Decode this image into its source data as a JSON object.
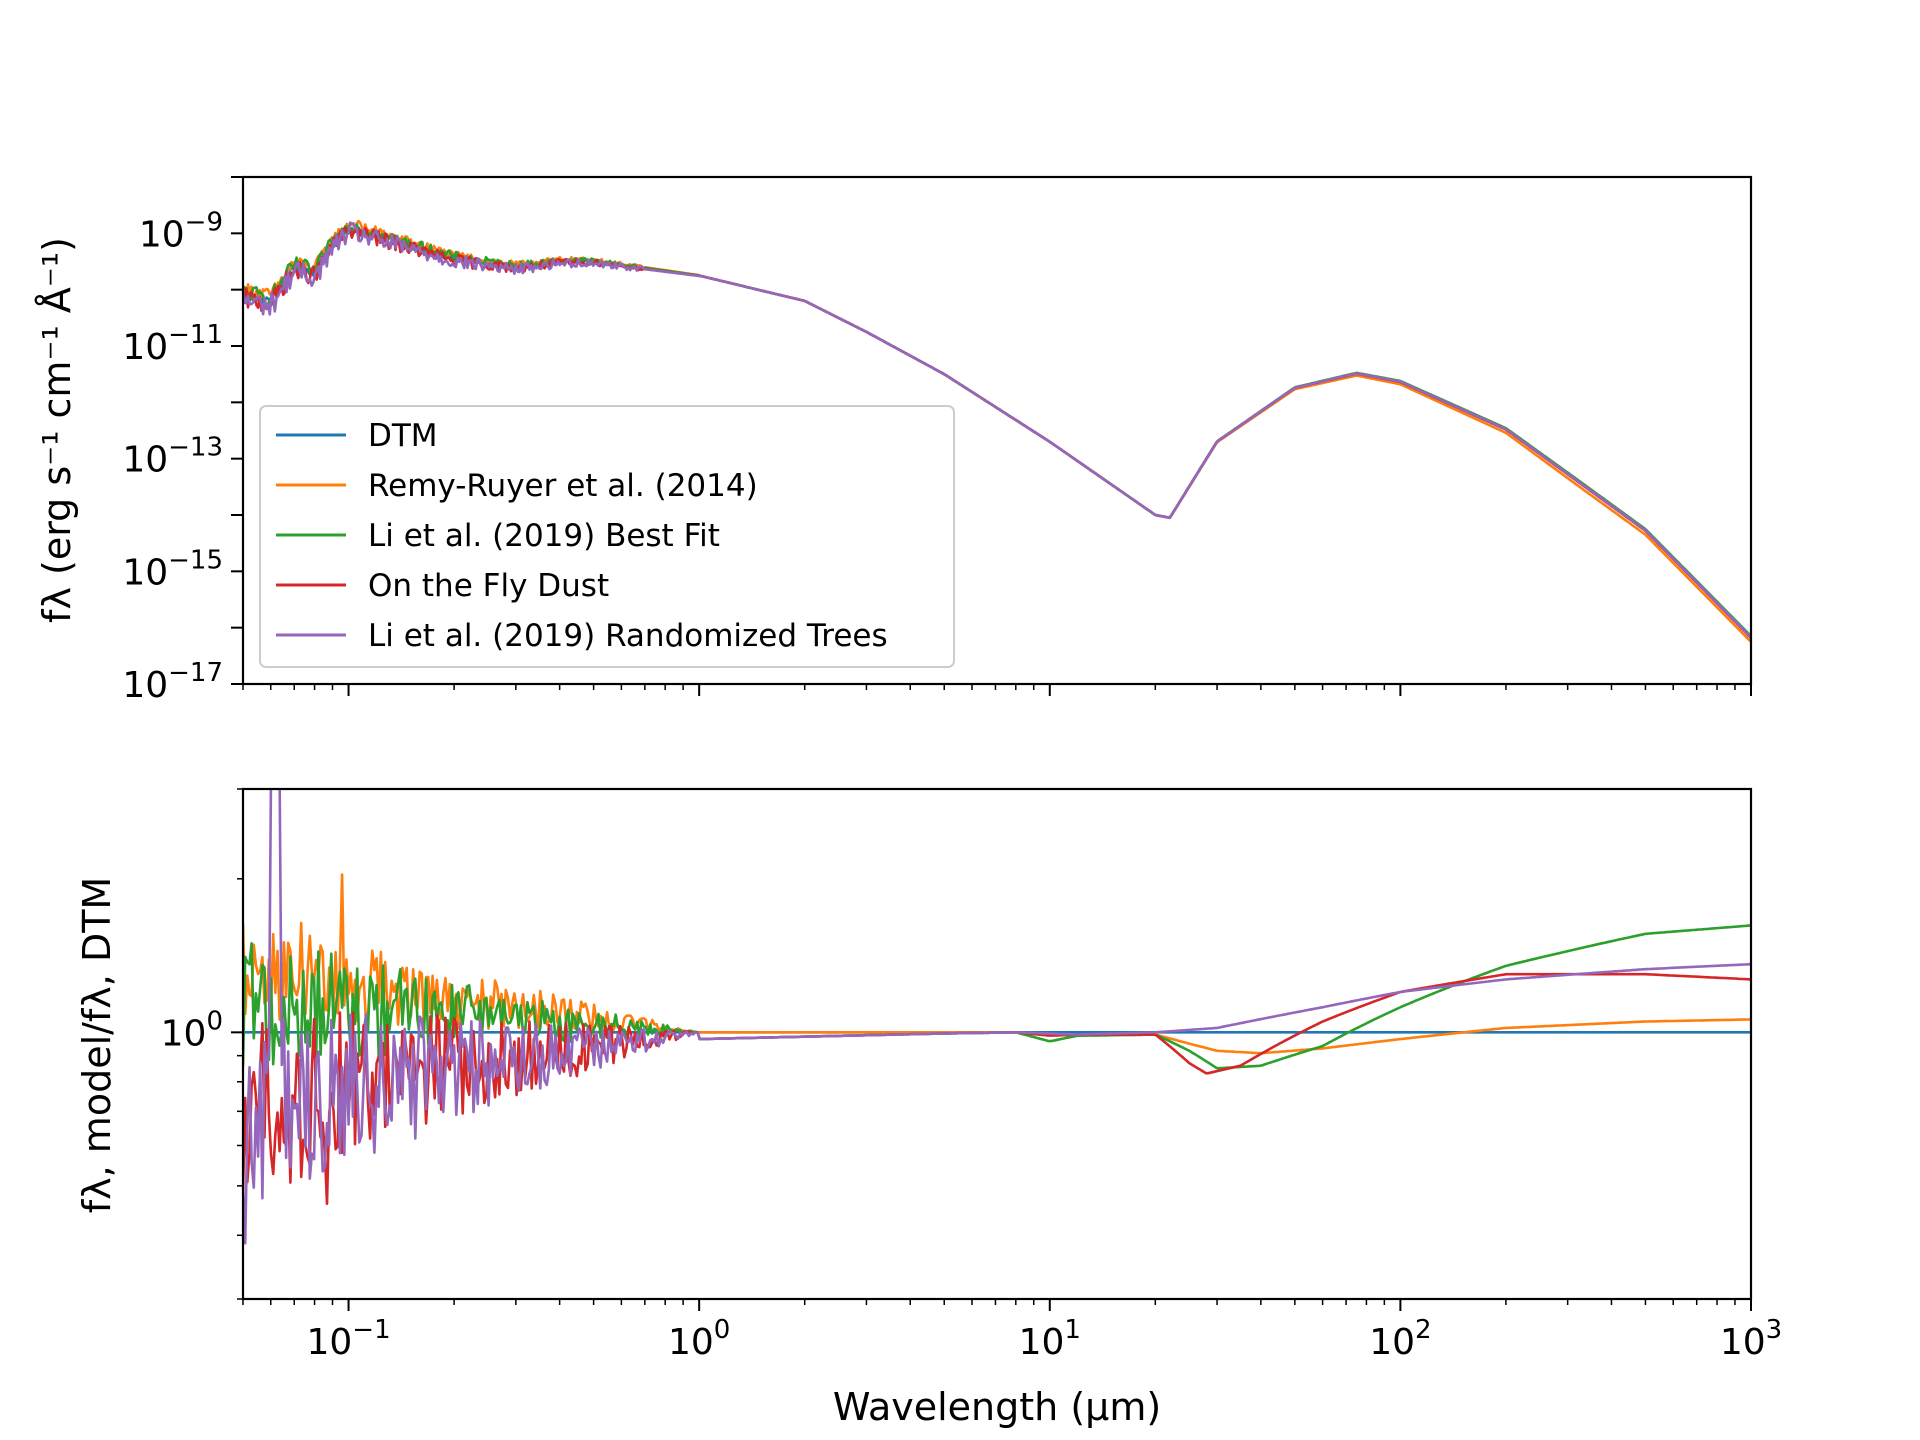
{
  "figure": {
    "xlabel": "Wavelength (μm)",
    "xscale": "log",
    "xlim": [
      0.05,
      1000
    ],
    "x_ticks": [
      {
        "value": 0.1,
        "base": "10",
        "exp": "−1"
      },
      {
        "value": 1,
        "base": "10",
        "exp": "0"
      },
      {
        "value": 10,
        "base": "10",
        "exp": "1"
      },
      {
        "value": 100,
        "base": "10",
        "exp": "2"
      },
      {
        "value": 1000,
        "base": "10",
        "exp": "3"
      }
    ]
  },
  "chart_data": [
    {
      "type": "line",
      "panel": "top",
      "ylabel": "fλ (erg s⁻¹ cm⁻¹ Å⁻¹)",
      "xscale": "log",
      "yscale": "log",
      "xlim": [
        0.05,
        1000
      ],
      "ylim_log10": [
        -17,
        -8
      ],
      "y_ticks": [
        {
          "log10": -9,
          "base": "10",
          "exp": "−9"
        },
        {
          "log10": -11,
          "base": "10",
          "exp": "−11"
        },
        {
          "log10": -13,
          "base": "10",
          "exp": "−13"
        },
        {
          "log10": -15,
          "base": "10",
          "exp": "−15"
        },
        {
          "log10": -17,
          "base": "10",
          "exp": "−17"
        }
      ],
      "legend_position": "lower-left",
      "series": [
        {
          "name": "DTM",
          "color": "#1f77b4",
          "offset": 0,
          "noise": 0.05
        },
        {
          "name": "Remy-Ruyer et al. (2014)",
          "color": "#ff7f0e",
          "offset": 0.1,
          "noise": 0.07
        },
        {
          "name": "Li et al. (2019) Best Fit",
          "color": "#2ca02c",
          "offset": 0.05,
          "noise": 0.09
        },
        {
          "name": "On the Fly Dust",
          "color": "#d62728",
          "offset": -0.05,
          "noise": 0.11
        },
        {
          "name": "Li et al. (2019) Randomized Trees",
          "color": "#9467bd",
          "offset": -0.08,
          "noise": 0.13
        }
      ],
      "key_points": [
        {
          "x": 0.05,
          "log10_y": -10.1
        },
        {
          "x": 0.06,
          "log10_y": -10.2
        },
        {
          "x": 0.07,
          "log10_y": -9.6
        },
        {
          "x": 0.08,
          "log10_y": -9.7
        },
        {
          "x": 0.09,
          "log10_y": -9.2
        },
        {
          "x": 0.1,
          "log10_y": -8.9
        },
        {
          "x": 0.2,
          "log10_y": -9.45
        },
        {
          "x": 0.3,
          "log10_y": -9.6
        },
        {
          "x": 0.4,
          "log10_y": -9.5
        },
        {
          "x": 0.5,
          "log10_y": -9.5
        },
        {
          "x": 1,
          "log10_y": -9.75
        },
        {
          "x": 2,
          "log10_y": -10.2
        },
        {
          "x": 3,
          "log10_y": -10.75
        },
        {
          "x": 5,
          "log10_y": -11.5
        },
        {
          "x": 10,
          "log10_y": -12.7
        },
        {
          "x": 20,
          "log10_y": -14.0
        },
        {
          "x": 22,
          "log10_y": -14.05
        },
        {
          "x": 30,
          "log10_y": -12.7
        },
        {
          "x": 50,
          "log10_y": -11.75
        },
        {
          "x": 75,
          "log10_y": -11.5
        },
        {
          "x": 100,
          "log10_y": -11.65
        },
        {
          "x": 200,
          "log10_y": -12.5
        },
        {
          "x": 500,
          "log10_y": -14.3
        },
        {
          "x": 1000,
          "log10_y": -16.2
        }
      ]
    },
    {
      "type": "line",
      "panel": "bottom",
      "ylabel": "fλ, model/fλ, DTM",
      "xscale": "log",
      "yscale": "log",
      "xlim": [
        0.05,
        1000
      ],
      "ylim": [
        0.3,
        3
      ],
      "y_ticks": [
        {
          "value": 1,
          "base": "10",
          "exp": "0"
        }
      ],
      "series": [
        {
          "name": "DTM",
          "color": "#1f77b4",
          "points": [
            [
              0.05,
              1.0
            ],
            [
              1000,
              1.0
            ]
          ]
        },
        {
          "name": "Remy-Ruyer et al. (2014)",
          "color": "#ff7f0e",
          "noisy_base": 1.3,
          "noise_amp": 0.25,
          "points": [
            [
              1,
              1.0
            ],
            [
              8,
              1.0
            ],
            [
              10,
              0.99
            ],
            [
              12,
              0.985
            ],
            [
              20,
              0.99
            ],
            [
              25,
              0.95
            ],
            [
              30,
              0.92
            ],
            [
              40,
              0.91
            ],
            [
              60,
              0.93
            ],
            [
              100,
              0.97
            ],
            [
              200,
              1.02
            ],
            [
              500,
              1.05
            ],
            [
              1000,
              1.06
            ]
          ]
        },
        {
          "name": "Li et al. (2019) Best Fit",
          "color": "#2ca02c",
          "noisy_base": 1.15,
          "noise_amp": 0.3,
          "points": [
            [
              1,
              0.97
            ],
            [
              5,
              0.995
            ],
            [
              8,
              1.0
            ],
            [
              10,
              0.96
            ],
            [
              12,
              0.985
            ],
            [
              20,
              0.99
            ],
            [
              25,
              0.92
            ],
            [
              30,
              0.85
            ],
            [
              40,
              0.86
            ],
            [
              60,
              0.94
            ],
            [
              100,
              1.12
            ],
            [
              200,
              1.35
            ],
            [
              500,
              1.56
            ],
            [
              1000,
              1.62
            ]
          ]
        },
        {
          "name": "On the Fly Dust",
          "color": "#d62728",
          "noisy_base": 0.72,
          "noise_amp": 0.45,
          "points": [
            [
              1,
              0.97
            ],
            [
              5,
              0.995
            ],
            [
              8,
              1.0
            ],
            [
              10,
              0.985
            ],
            [
              12,
              0.99
            ],
            [
              20,
              0.99
            ],
            [
              25,
              0.87
            ],
            [
              28,
              0.83
            ],
            [
              35,
              0.86
            ],
            [
              60,
              1.05
            ],
            [
              100,
              1.2
            ],
            [
              200,
              1.3
            ],
            [
              500,
              1.3
            ],
            [
              1000,
              1.27
            ]
          ]
        },
        {
          "name": "Li et al. (2019) Randomized Trees",
          "color": "#9467bd",
          "noisy_base": 0.7,
          "noise_amp": 0.45,
          "points": [
            [
              1,
              0.97
            ],
            [
              5,
              0.995
            ],
            [
              8,
              1.0
            ],
            [
              12,
              0.99
            ],
            [
              20,
              1.0
            ],
            [
              30,
              1.02
            ],
            [
              60,
              1.12
            ],
            [
              100,
              1.2
            ],
            [
              200,
              1.27
            ],
            [
              500,
              1.33
            ],
            [
              1000,
              1.36
            ]
          ]
        }
      ]
    }
  ]
}
